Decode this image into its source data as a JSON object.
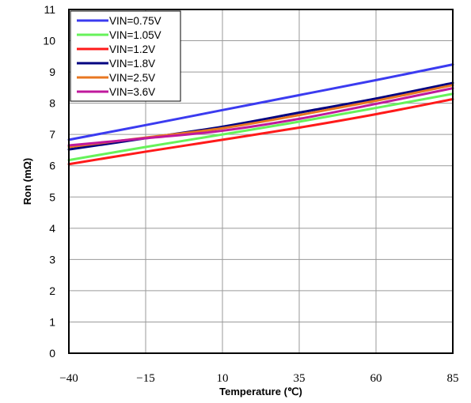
{
  "chart_data": {
    "type": "line",
    "xlabel": "Temperature (℃)",
    "ylabel": "Ron (mΩ)",
    "xlim": [
      -40,
      85
    ],
    "ylim": [
      0,
      11
    ],
    "x_ticks": [
      "−40",
      "−15",
      "10",
      "35",
      "60",
      "85"
    ],
    "y_ticks": [
      "0",
      "1",
      "2",
      "3",
      "4",
      "5",
      "6",
      "7",
      "8",
      "9",
      "10",
      "11"
    ],
    "grid": true,
    "legend_position": "top-left",
    "series": [
      {
        "name": "VIN=0.75V",
        "color": "#3b3bf0",
        "x": [
          -40,
          -15,
          10,
          35,
          60,
          85
        ],
        "values": [
          6.83,
          7.3,
          7.78,
          8.26,
          8.74,
          9.24
        ]
      },
      {
        "name": "VIN=1.05V",
        "color": "#66f25a",
        "x": [
          -40,
          -15,
          10,
          35,
          60,
          85
        ],
        "values": [
          6.18,
          6.6,
          7.0,
          7.41,
          7.85,
          8.3
        ]
      },
      {
        "name": "VIN=1.2V",
        "color": "#ff1a1a",
        "x": [
          -40,
          -15,
          10,
          35,
          60,
          85
        ],
        "values": [
          6.05,
          6.45,
          6.83,
          7.22,
          7.65,
          8.13
        ]
      },
      {
        "name": "VIN=1.8V",
        "color": "#000080",
        "x": [
          -40,
          -15,
          10,
          35,
          60,
          85
        ],
        "values": [
          6.52,
          6.88,
          7.25,
          7.7,
          8.15,
          8.65
        ]
      },
      {
        "name": "VIN=2.5V",
        "color": "#e87722",
        "x": [
          -40,
          -15,
          10,
          35,
          60,
          85
        ],
        "values": [
          6.6,
          6.9,
          7.2,
          7.62,
          8.08,
          8.58
        ]
      },
      {
        "name": "VIN=3.6V",
        "color": "#c0199c",
        "x": [
          -40,
          -15,
          10,
          35,
          60,
          85
        ],
        "values": [
          6.65,
          6.88,
          7.12,
          7.5,
          7.98,
          8.48
        ]
      }
    ]
  }
}
